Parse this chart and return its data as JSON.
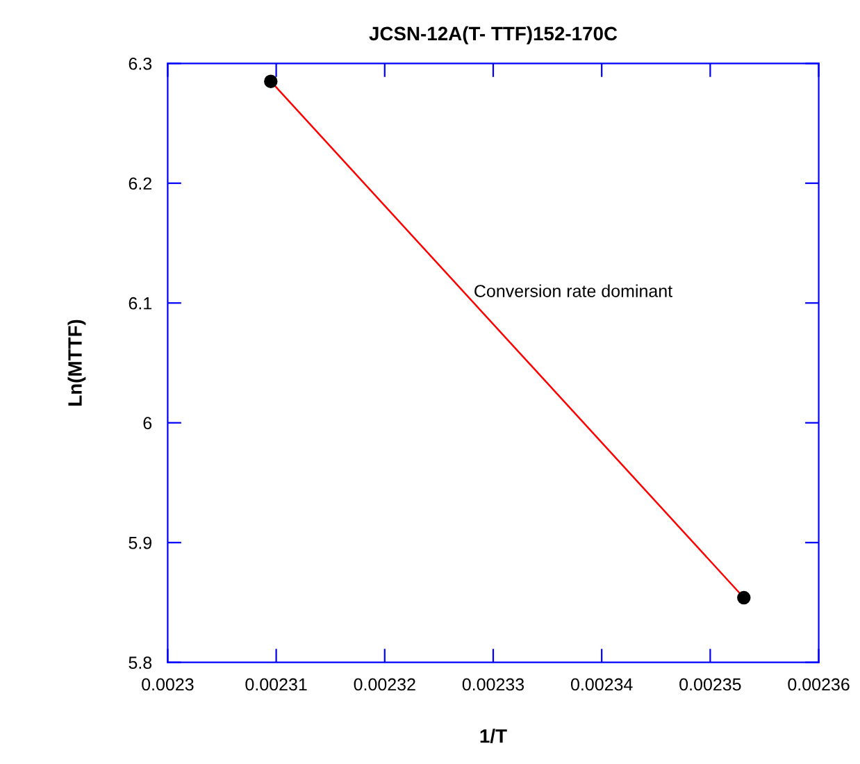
{
  "chart_data": {
    "type": "line",
    "title": "JCSN-12A(T- TTF)152-170C",
    "xlabel": "1/T",
    "ylabel": "Ln(MTTF)",
    "x": [
      0.0023095,
      0.0023531
    ],
    "series": [
      {
        "color": "#ff0000",
        "values": [
          6.285,
          5.854
        ]
      }
    ],
    "marker": "circle",
    "line_style": "solid",
    "grid": false,
    "legend": false,
    "xlim": [
      0.0023,
      0.00236
    ],
    "xticks": [
      0.0023,
      0.00231,
      0.00232,
      0.00233,
      0.00234,
      0.00235,
      0.00236
    ],
    "ylim": [
      5.8,
      6.3
    ],
    "yticks": [
      5.8,
      5.9,
      6,
      6.1,
      6.2,
      6.3
    ],
    "annotations": [
      "Conversion rate dominant"
    ]
  }
}
